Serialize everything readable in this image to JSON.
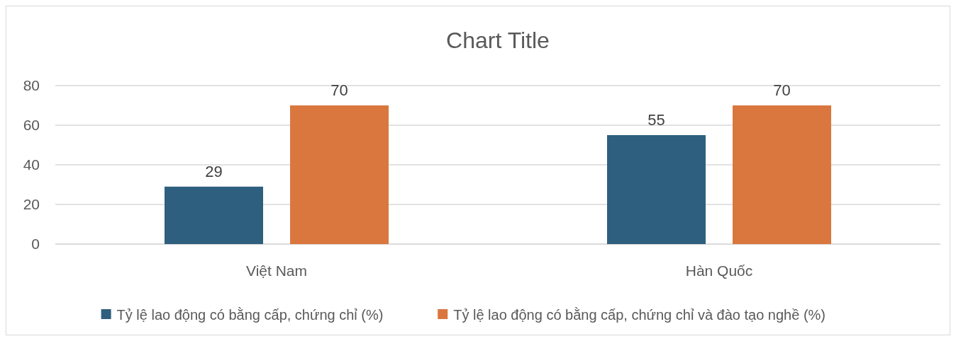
{
  "chart_data": {
    "type": "bar",
    "title": "Chart Title",
    "categories": [
      "Việt Nam",
      "Hàn Quốc"
    ],
    "series": [
      {
        "name": "Tỷ lệ lao động có bằng cấp, chứng chỉ (%)",
        "color": "#2e5f7f",
        "values": [
          29,
          55
        ]
      },
      {
        "name": "Tỷ lệ lao động có bằng cấp, chứng chỉ và đào tạo nghề (%)",
        "color": "#d9773f",
        "values": [
          70,
          70
        ]
      }
    ],
    "ylim": [
      0,
      80
    ],
    "yticks": [
      0,
      20,
      40,
      60,
      80
    ],
    "grid": "y",
    "legend": "bottom",
    "data_labels": true
  }
}
